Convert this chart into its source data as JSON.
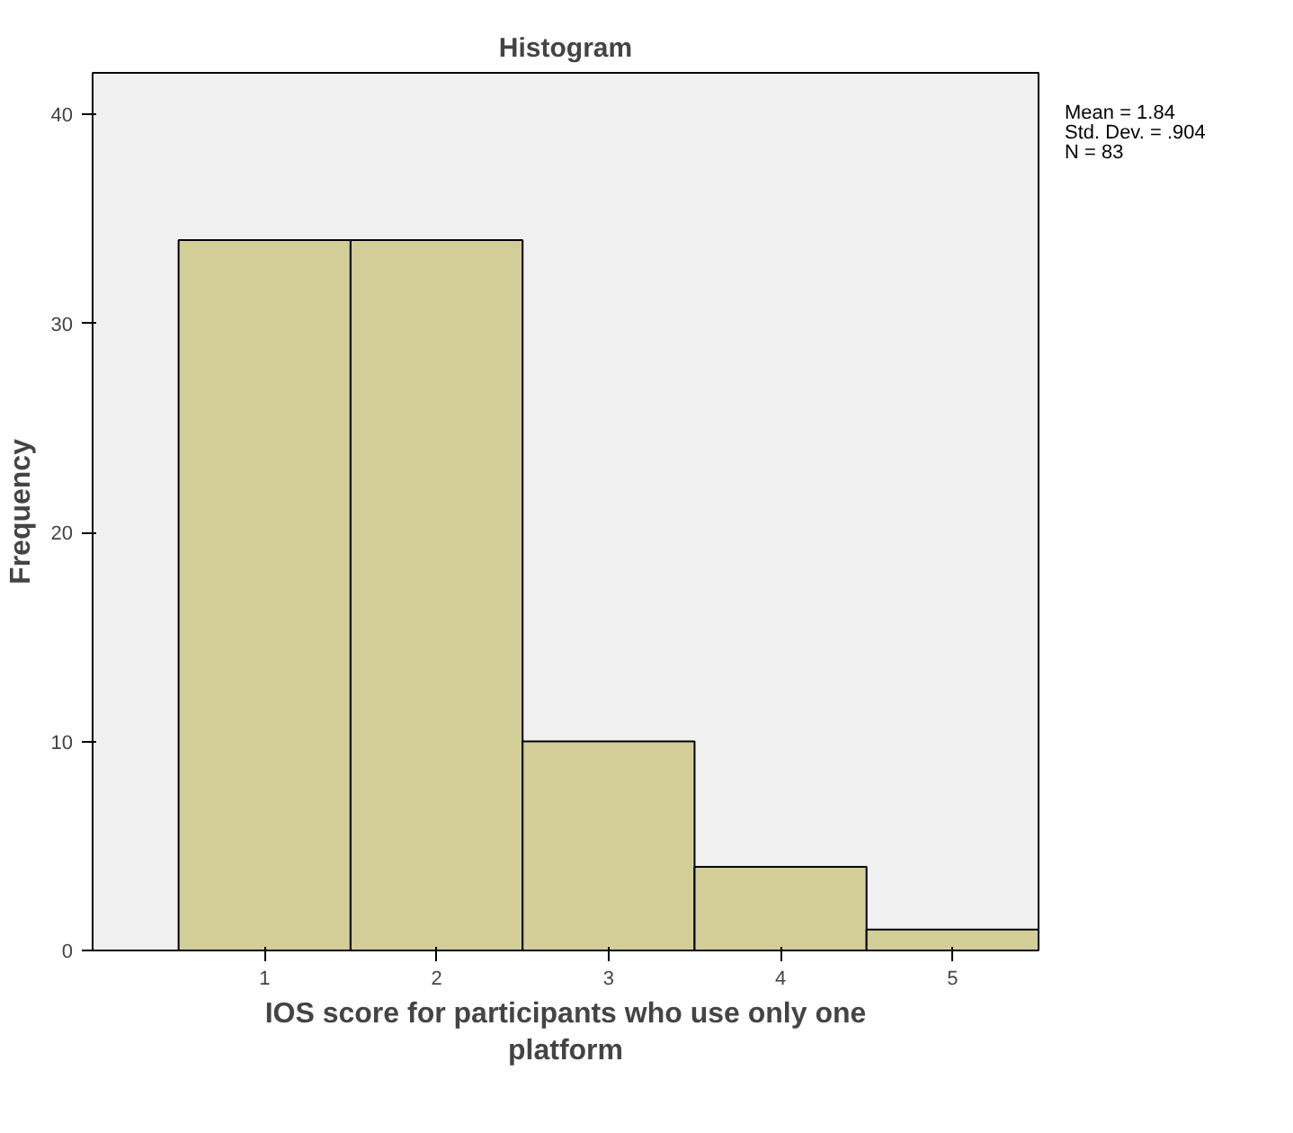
{
  "chart_data": {
    "type": "histogram",
    "title": "Histogram",
    "xlabel": "IOS score for participants who use only one platform",
    "ylabel": "Frequency",
    "bins": [
      0.5,
      1.5,
      2.5,
      3.5,
      4.5,
      5.5
    ],
    "values": [
      34,
      34,
      10,
      4,
      1
    ],
    "color": "#d3ce97",
    "xlim": [
      0,
      5.5
    ],
    "ylim": [
      0,
      42
    ],
    "xticks": [
      1,
      2,
      3,
      4,
      5
    ],
    "yticks": [
      0,
      10,
      20,
      30,
      40
    ],
    "annotations": [
      "Mean = 1.84",
      "Std. Dev. = .904",
      "N = 83"
    ]
  }
}
